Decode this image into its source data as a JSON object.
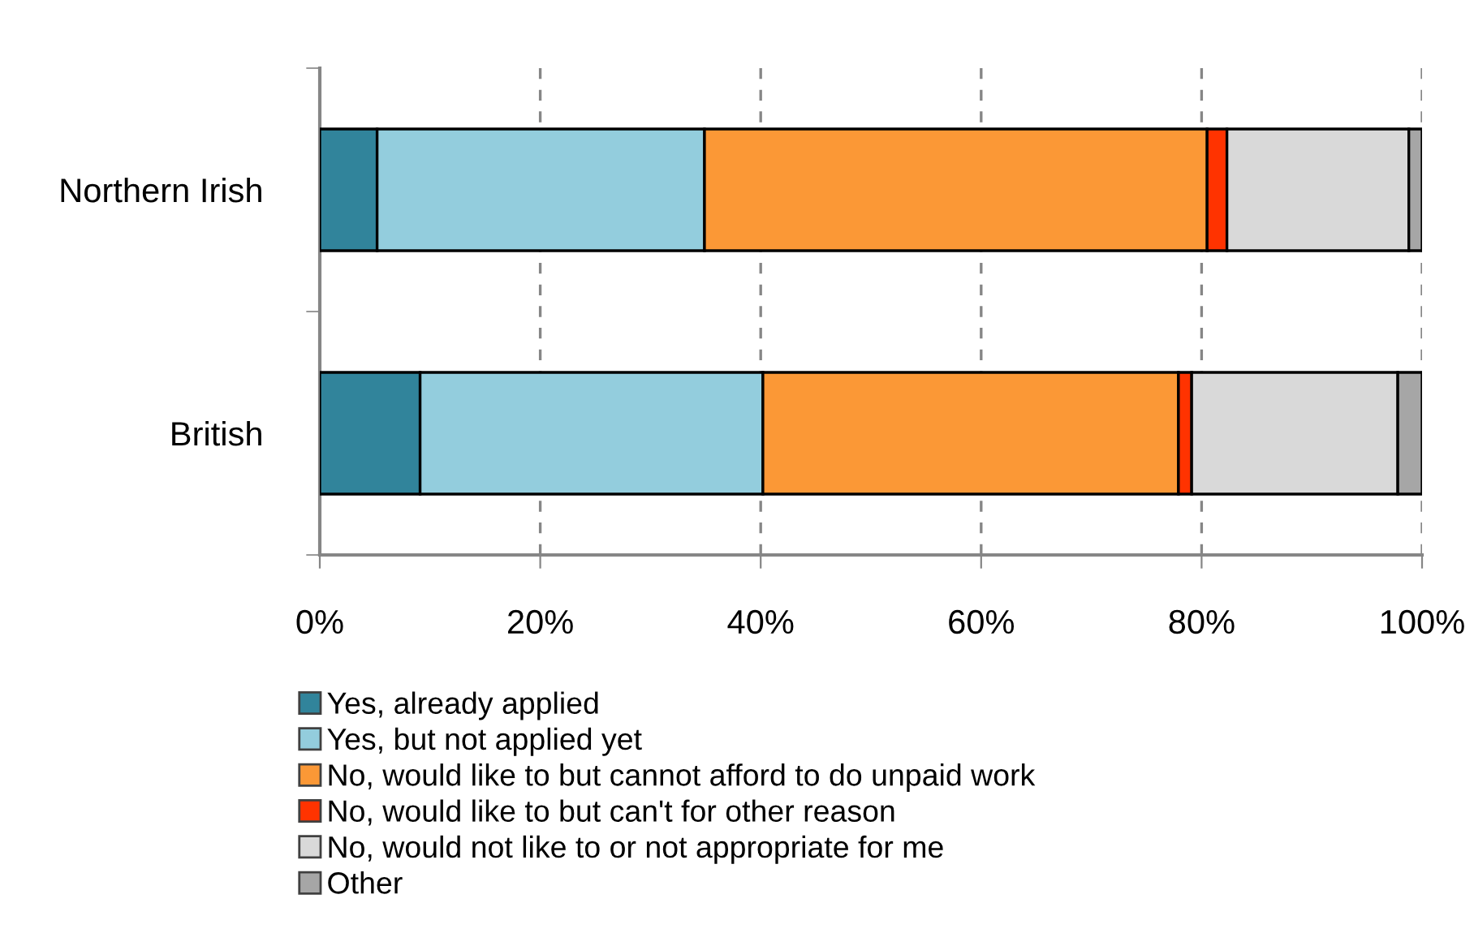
{
  "chart_data": {
    "type": "bar",
    "orientation": "horizontal",
    "stacked": true,
    "categories": [
      "Northern Irish",
      "British"
    ],
    "series": [
      {
        "name": "Yes, already applied",
        "color": "#31849b",
        "values": [
          5.2,
          9.1
        ]
      },
      {
        "name": "Yes, but not applied yet",
        "color": "#93cddd",
        "values": [
          29.7,
          31.1
        ]
      },
      {
        "name": "No, would like to but cannot afford to do unpaid work",
        "color": "#fb9836",
        "values": [
          45.6,
          37.7
        ]
      },
      {
        "name": "No, would like to but can't for other reason",
        "color": "#ff3300",
        "values": [
          1.8,
          1.2
        ]
      },
      {
        "name": "No, would not like to or not appropriate for me",
        "color": "#d9d9d9",
        "values": [
          16.5,
          18.7
        ]
      },
      {
        "name": "Other",
        "color": "#a6a6a6",
        "values": [
          1.2,
          2.2
        ]
      }
    ],
    "xlim": [
      0,
      100
    ],
    "xticks": [
      {
        "value": 0,
        "label": "0%"
      },
      {
        "value": 20,
        "label": "20%"
      },
      {
        "value": 40,
        "label": "40%"
      },
      {
        "value": 60,
        "label": "60%"
      },
      {
        "value": 80,
        "label": "80%"
      },
      {
        "value": 100,
        "label": "100%"
      }
    ],
    "grid": "x",
    "legend": "bottom"
  }
}
